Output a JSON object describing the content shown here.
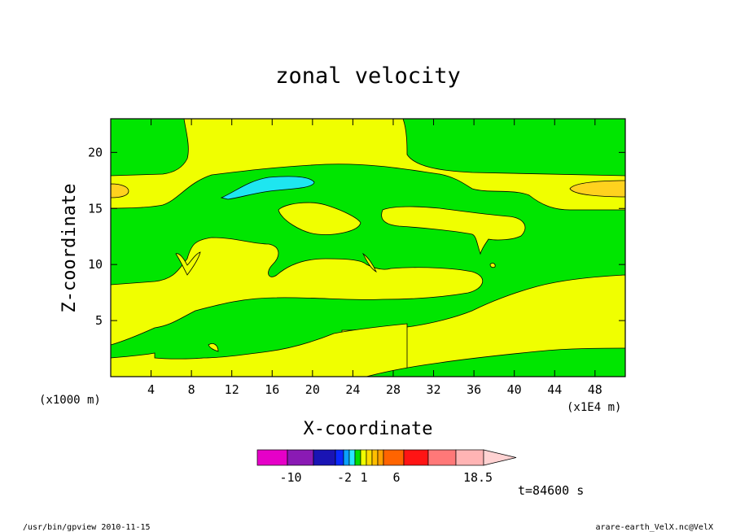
{
  "chart_data": {
    "type": "heatmap",
    "title": "zonal velocity",
    "xlabel": "X-coordinate",
    "ylabel": "Z-coordinate",
    "x_units_note": "(x1000 m)",
    "x_scale_note": "(x1E4 m)",
    "xlim": [
      0,
      51
    ],
    "ylim": [
      0,
      23
    ],
    "x_ticks": [
      "4",
      "8",
      "12",
      "16",
      "20",
      "24",
      "28",
      "32",
      "36",
      "40",
      "44",
      "48"
    ],
    "y_ticks": [
      "5",
      "10",
      "15",
      "20"
    ],
    "colorbar": {
      "labels": [
        "-10",
        "-2",
        "1",
        "6",
        "18.5"
      ],
      "colors": [
        "#e600c8",
        "#8a1ab4",
        "#1a14b4",
        "#0a28ff",
        "#0aa0ff",
        "#28e6ff",
        "#00dc00",
        "#f0ff00",
        "#ffdc00",
        "#ffbe00",
        "#ffa000",
        "#ff6400",
        "#ff1414",
        "#ff7878",
        "#ffb4b4",
        "#ffd2d2"
      ]
    },
    "time_label": "t=84600 s",
    "footer_left": "/usr/bin/gpview   2010-11-15",
    "footer_right": "arare-earth_VelX.nc@VelX",
    "region_colors": {
      "green": "#00e600",
      "yellow": "#f0ff00",
      "orange": "#ffd21e",
      "cyan": "#1ee6f0"
    }
  }
}
